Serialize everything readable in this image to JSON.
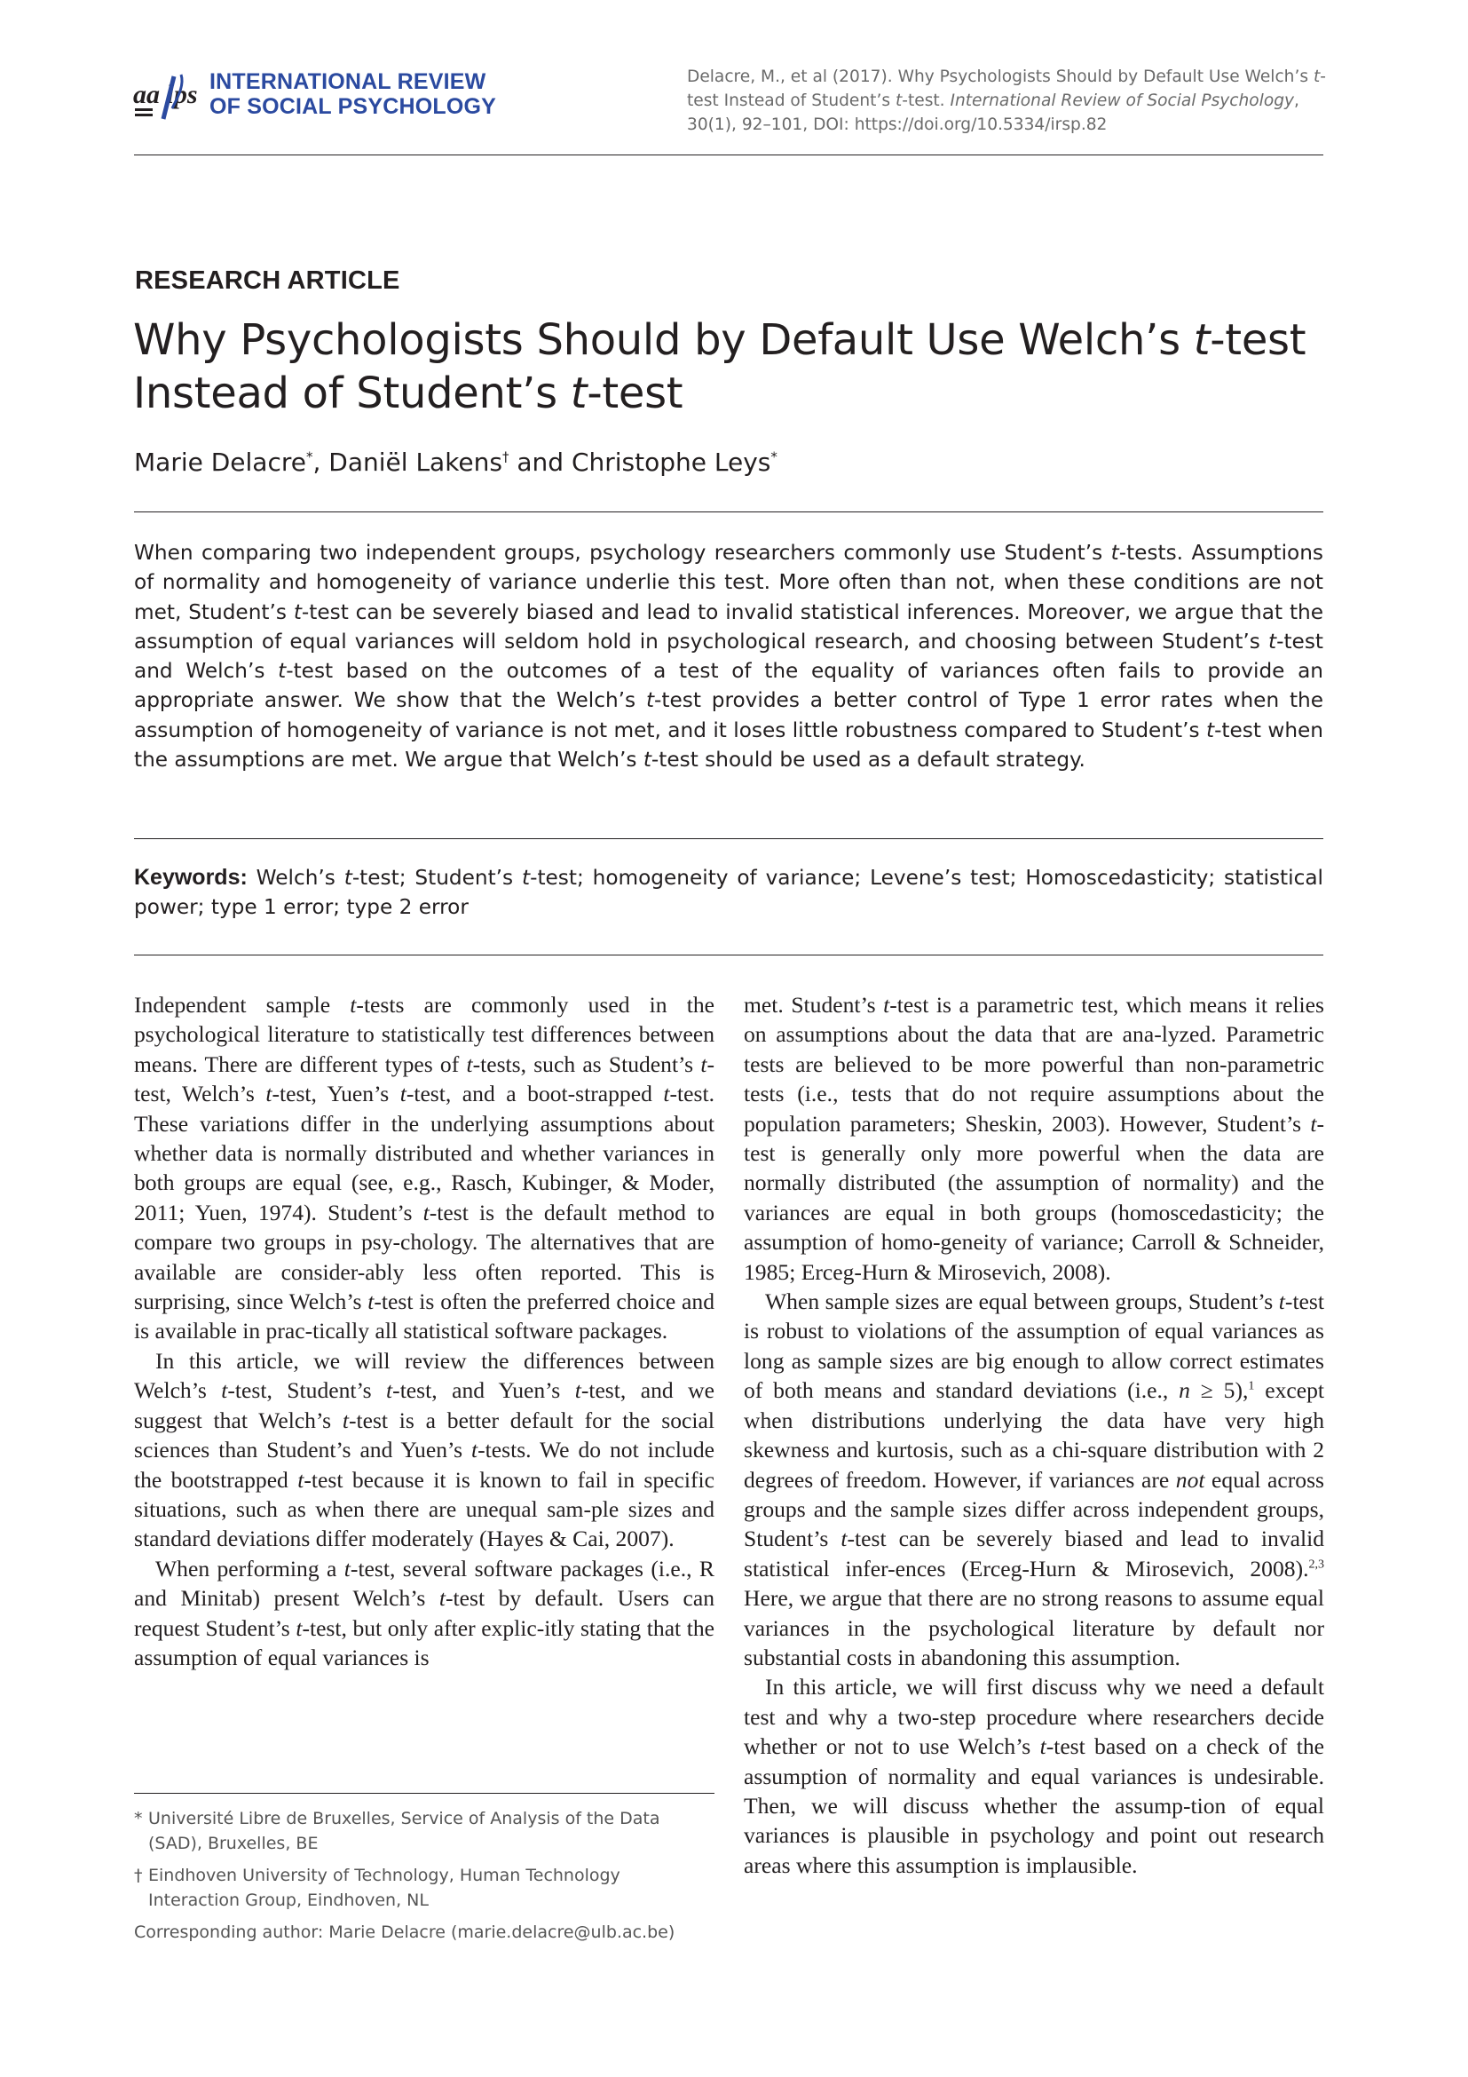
{
  "header": {
    "journal_line1": "INTERNATIONAL REVIEW",
    "journal_line2": "OF SOCIAL PSYCHOLOGY",
    "logo_text": "aa lps",
    "citation_plain1": "Delacre, M., et al (2017). Why Psychologists Should by Default Use Welch’s ",
    "citation_t1": "t",
    "citation_plain2": "-test Instead of Student’s ",
    "citation_t2": "t",
    "citation_plain3": "-test. ",
    "citation_journal": "International Review of Social Psychology",
    "citation_plain4": ", 30(1), 92–101, DOI: https://doi.org/10.5334/irsp.82"
  },
  "article": {
    "type_label": "RESEARCH ARTICLE",
    "title_part1": "Why Psychologists Should by Default Use Welch’s ",
    "title_t1": "t",
    "title_part2": "-test Instead of Student’s ",
    "title_t2": "t",
    "title_part3": "-test",
    "author1": "Marie Delacre",
    "author1_mark": "*",
    "author_sep": ", ",
    "author2": "Daniël Lakens",
    "author2_mark": "†",
    "author_and": " and ",
    "author3": "Christophe Leys",
    "author3_mark": "*"
  },
  "abstract": {
    "s1": "When comparing two independent groups, psychology researchers commonly use Student’s ",
    "t1": "t",
    "s2": "-tests. Assumptions of normality and homogeneity of variance underlie this test. More often than not, when these conditions are not met, Student’s ",
    "t2": "t",
    "s3": "-test can be severely biased and lead to invalid statistical inferences. Moreover, we argue that the assumption of equal variances will seldom hold in psychological research, and choosing between Student’s ",
    "t3": "t",
    "s4": "-test and Welch’s ",
    "t4": "t",
    "s5": "-test based on the outcomes of a test of the equality of variances often fails to provide an appropriate answer. We show that the Welch’s ",
    "t5": "t",
    "s6": "-test provides a better control of Type 1 error rates when the assumption of homogeneity of variance is not met, and it loses little robustness compared to Student’s ",
    "t6": "t",
    "s7": "-test when the assumptions are met. We argue that Welch’s ",
    "t7": "t",
    "s8": "-test should be used as a default strategy."
  },
  "keywords": {
    "label": "Keywords:",
    "k1": " Welch’s ",
    "t1": "t",
    "k2": "-test; Student’s ",
    "t2": "t",
    "k3": "-test; homogeneity of variance; Levene’s test; Homoscedasticity; statistical power; type 1 error; type 2 error"
  },
  "body": {
    "p1": {
      "a": "Independent sample ",
      "t1": "t",
      "b": "-tests are commonly used in the psychological literature to statistically test differences between means. There are different types of ",
      "t2": "t",
      "c": "-tests, such as Student’s ",
      "t3": "t",
      "d": "-test, Welch’s ",
      "t4": "t",
      "e": "-test, Yuen’s ",
      "t5": "t",
      "f": "-test, and a boot-strapped ",
      "t6": "t",
      "g": "-test. These variations differ in the underlying assumptions about whether data is normally distributed and whether variances in both groups are equal (see, e.g., Rasch, Kubinger, & Moder, 2011; Yuen, 1974). Student’s ",
      "t7": "t",
      "h": "-test is the default method to compare two groups in psy-chology. The alternatives that are available are consider-ably less often reported. This is surprising, since Welch’s ",
      "t8": "t",
      "i": "-test is often the preferred choice and is available in prac-tically all statistical software packages."
    },
    "p2": {
      "a": "In this article, we will review the differences between Welch’s ",
      "t1": "t",
      "b": "-test, Student’s ",
      "t2": "t",
      "c": "-test, and Yuen’s ",
      "t3": "t",
      "d": "-test, and we suggest that Welch’s ",
      "t4": "t",
      "e": "-test is a better default for the social sciences than Student’s and Yuen’s ",
      "t5": "t",
      "f": "-tests. We do not include the bootstrapped ",
      "t6": "t",
      "g": "-test because it is known to fail in specific situations, such as when there are unequal sam-ple sizes and standard deviations differ moderately (Hayes & Cai, 2007)."
    },
    "p3": {
      "a": "When performing a ",
      "t1": "t",
      "b": "-test, several software packages (i.e., R and Minitab) present Welch’s ",
      "t2": "t",
      "c": "-test by default. Users can request Student’s ",
      "t3": "t",
      "d": "-test, but only after explic-itly stating that the assumption of equal variances is"
    },
    "p4": {
      "a": "met. Student’s ",
      "t1": "t",
      "b": "-test is a parametric test, which means it relies on assumptions about the data that are ana-lyzed. Parametric tests are believed to be more powerful than non-parametric tests (i.e., tests that do not require assumptions about the population parameters; Sheskin, 2003). However, Student’s ",
      "t2": "t",
      "c": "-test is generally only more powerful when the data are normally distributed (the assumption of normality) and the variances are equal in both groups (homoscedasticity; the assumption of homo-geneity of variance; Carroll & Schneider, 1985; Erceg-Hurn & Mirosevich, 2008)."
    },
    "p5": {
      "a": "When sample sizes are equal between groups, Student’s ",
      "t1": "t",
      "b": "-test is robust to violations of the assumption of equal variances as long as sample sizes are big enough to allow correct estimates of both means and standard deviations (i.e., ",
      "n": "n",
      "c": " ≥ 5),",
      "sup1": "1",
      "d": " except when distributions underlying the data have very high skewness and kurtosis, such as a chi-square distribution with 2 degrees of freedom. However, if variances are ",
      "not": "not",
      "e": " equal across groups and the sample sizes differ across independent groups, Student’s ",
      "t2": "t",
      "f": "-test can be severely biased and lead to invalid statistical infer-ences (Erceg-Hurn & Mirosevich, 2008).",
      "sup2": "2,3",
      "g": " Here, we argue that there are no strong reasons to assume equal variances in the psychological literature by default nor substantial costs in abandoning this assumption."
    },
    "p6": {
      "a": "In this article, we will first discuss why we need a default test and why a two-step procedure where researchers decide whether or not to use Welch’s ",
      "t1": "t",
      "b": "-test based on a check of the assumption of normality and equal variances is undesirable. Then, we will discuss whether the assump-tion of equal variances is plausible in psychology and point out research areas where this assumption is implausible."
    }
  },
  "footnotes": {
    "fn1_mark": "*",
    "fn1_text": "Université Libre de Bruxelles, Service of Analysis of the Data (SAD), Bruxelles, BE",
    "fn2_mark": "†",
    "fn2_text": "Eindhoven University of Technology, Human Technology Interaction Group, Eindhoven, NL",
    "corresponding": "Corresponding author: Marie Delacre (marie.delacre@ulb.ac.be)"
  }
}
